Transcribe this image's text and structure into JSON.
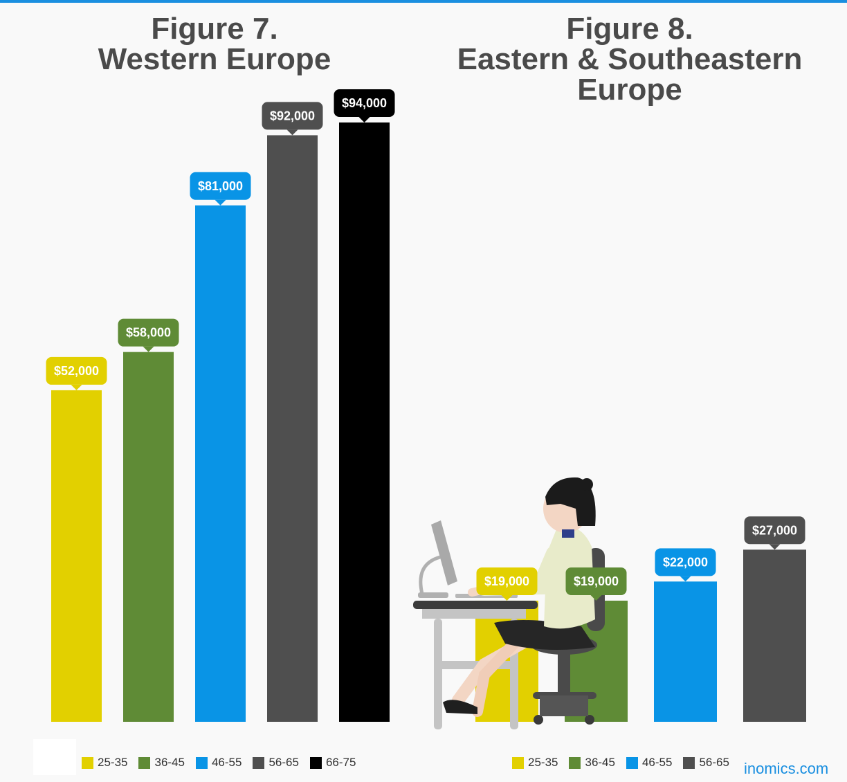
{
  "chart_data": [
    {
      "type": "bar",
      "title": "Figure 7.",
      "subtitle": "Western Europe",
      "categories": [
        "25-35",
        "36-45",
        "46-55",
        "56-65",
        "66-75"
      ],
      "values": [
        52000,
        58000,
        81000,
        92000,
        94000
      ],
      "data_labels": [
        "$52,000",
        "$58,000",
        "$81,000",
        "$92,000",
        "$94,000"
      ],
      "colors": [
        "#e2d000",
        "#5f8b36",
        "#0994e6",
        "#4f4f4f",
        "#000000"
      ],
      "legend": [
        "25-35",
        "36-45",
        "46-55",
        "56-65",
        "66-75"
      ],
      "legend_placement": "bottom",
      "ylim": [
        0,
        100000
      ],
      "grid": false
    },
    {
      "type": "bar",
      "title": "Figure 8.",
      "subtitle": "Eastern & Southeastern Europe",
      "categories": [
        "25-35",
        "36-45",
        "46-55",
        "56-65"
      ],
      "values": [
        19000,
        19000,
        22000,
        27000
      ],
      "data_labels": [
        "$19,000",
        "$19,000",
        "$22,000",
        "$27,000"
      ],
      "colors": [
        "#e2d000",
        "#5f8b36",
        "#0994e6",
        "#4f4f4f"
      ],
      "legend": [
        "25-35",
        "36-45",
        "46-55",
        "56-65"
      ],
      "legend_placement": "bottom",
      "ylim": [
        0,
        100000
      ],
      "grid": false
    }
  ],
  "title_lines": {
    "fig7": [
      "Figure 7.",
      "Western Europe"
    ],
    "fig8": [
      "Figure 8.",
      "Eastern & Southeastern",
      "Europe"
    ]
  },
  "brand": "inomics.com",
  "illustration": "woman-at-computer-desk"
}
